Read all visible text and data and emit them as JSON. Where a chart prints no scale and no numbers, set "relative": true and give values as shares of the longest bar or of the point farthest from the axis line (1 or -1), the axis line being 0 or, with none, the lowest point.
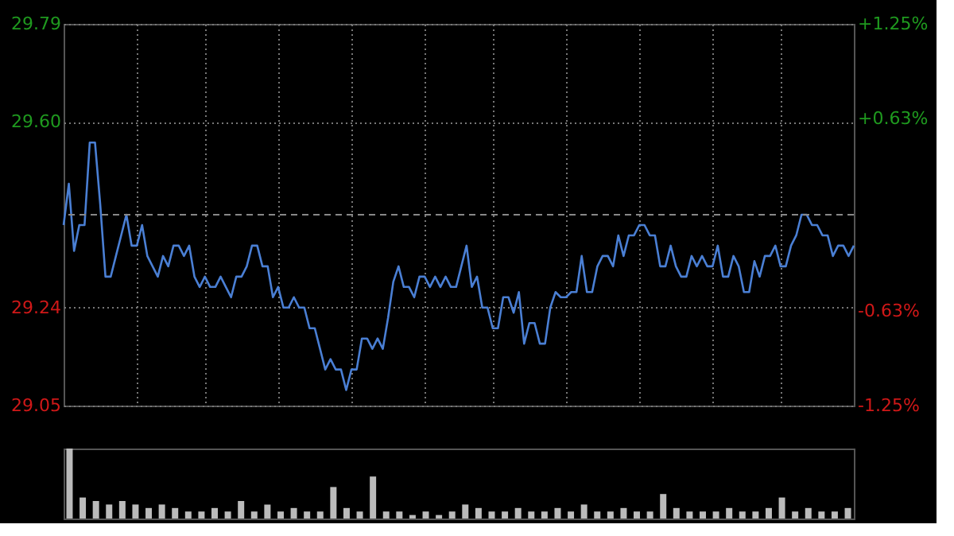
{
  "chart_data": [
    {
      "type": "line",
      "categories": [
        null,
        null,
        null,
        null,
        null,
        null,
        null,
        null,
        null,
        null,
        null,
        null,
        null,
        null,
        null,
        null,
        null,
        null,
        null,
        null,
        null,
        null,
        null,
        null,
        null,
        null,
        null,
        null,
        null,
        null,
        null,
        null,
        null,
        null,
        null,
        null,
        null,
        null,
        null,
        null,
        null,
        null,
        null,
        null,
        null,
        null,
        null,
        null,
        null,
        null,
        null,
        null,
        null,
        null,
        null,
        null,
        null,
        null,
        null,
        null,
        null,
        null,
        null,
        null,
        null,
        null,
        null,
        null,
        null,
        null,
        null,
        null,
        null,
        null,
        null,
        null,
        null,
        null,
        null,
        null,
        null,
        null,
        null,
        null,
        null,
        null,
        null,
        null,
        null,
        null,
        null,
        null,
        null,
        null,
        null,
        null,
        null,
        null,
        null,
        null,
        null,
        null,
        null,
        null,
        null,
        null,
        null,
        null,
        null,
        null,
        null,
        null,
        null,
        null,
        null,
        null,
        null,
        null,
        null,
        null,
        null,
        null,
        null,
        null,
        null,
        null,
        null,
        null,
        null,
        null,
        null,
        null,
        null,
        null,
        null,
        null,
        null,
        null,
        null,
        null,
        null,
        null,
        null,
        null,
        null,
        null,
        null,
        null,
        null,
        null,
        null,
        null
      ],
      "ylim": [
        29.05,
        29.79
      ],
      "yticks": [
        29.05,
        29.24,
        {
          "value": 29.6,
          "label": "29.60"
        },
        29.79
      ],
      "y2lim": [
        -1.25,
        1.25
      ],
      "y2ticks": [
        {
          "value": -1.25,
          "label": "-1.25%"
        },
        {
          "value": -0.63,
          "label": "-0.63%"
        },
        {
          "value": 0.63,
          "label": "+0.63%"
        },
        {
          "value": 1.25,
          "label": "+1.25%"
        }
      ],
      "tick_labels": "y",
      "grid": true,
      "ref_lines": [
        {
          "axis": "y",
          "value": 29.42,
          "color": "#888888",
          "line_style": "dashed"
        }
      ],
      "series": [
        {
          "color": "#4a7fd4",
          "values": [
            29.4,
            29.48,
            29.35,
            29.4,
            29.4,
            29.56,
            29.56,
            29.44,
            29.3,
            29.3,
            29.34,
            29.38,
            29.42,
            29.36,
            29.36,
            29.4,
            29.34,
            29.32,
            29.3,
            29.34,
            29.32,
            29.36,
            29.36,
            29.34,
            29.36,
            29.3,
            29.28,
            29.3,
            29.28,
            29.28,
            29.3,
            29.28,
            29.26,
            29.3,
            29.3,
            29.32,
            29.36,
            29.36,
            29.32,
            29.32,
            29.26,
            29.28,
            29.24,
            29.24,
            29.26,
            29.24,
            29.24,
            29.2,
            29.2,
            29.16,
            29.12,
            29.14,
            29.12,
            29.12,
            29.08,
            29.12,
            29.12,
            29.18,
            29.18,
            29.16,
            29.18,
            29.16,
            29.22,
            29.29,
            29.32,
            29.28,
            29.28,
            29.26,
            29.3,
            29.3,
            29.28,
            29.3,
            29.28,
            29.3,
            29.28,
            29.28,
            29.32,
            29.36,
            29.28,
            29.3,
            29.24,
            29.24,
            29.2,
            29.2,
            29.26,
            29.26,
            29.23,
            29.27,
            29.17,
            29.21,
            29.21,
            29.17,
            29.17,
            29.24,
            29.27,
            29.26,
            29.26,
            29.27,
            29.27,
            29.34,
            29.27,
            29.27,
            29.32,
            29.34,
            29.34,
            29.32,
            29.38,
            29.34,
            29.38,
            29.38,
            29.4,
            29.4,
            29.38,
            29.38,
            29.32,
            29.32,
            29.36,
            29.32,
            29.3,
            29.3,
            29.34,
            29.32,
            29.34,
            29.32,
            29.32,
            29.36,
            29.3,
            29.3,
            29.34,
            29.32,
            29.27,
            29.27,
            29.33,
            29.3,
            29.34,
            29.34,
            29.36,
            29.32,
            29.32,
            29.36,
            29.38,
            29.42,
            29.42,
            29.4,
            29.4,
            29.38,
            29.38,
            29.34,
            29.36,
            29.36,
            29.34,
            29.36
          ]
        }
      ]
    },
    {
      "type": "bar",
      "relative": true,
      "tick_labels": false,
      "categories": [
        null,
        null,
        null,
        null,
        null,
        null,
        null,
        null,
        null,
        null,
        null,
        null,
        null,
        null,
        null,
        null,
        null,
        null,
        null,
        null,
        null,
        null,
        null,
        null,
        null,
        null,
        null,
        null,
        null,
        null,
        null,
        null,
        null,
        null,
        null,
        null,
        null,
        null,
        null,
        null,
        null,
        null,
        null,
        null,
        null,
        null,
        null,
        null,
        null,
        null,
        null,
        null,
        null,
        null,
        null,
        null,
        null,
        null,
        null,
        null
      ],
      "series": [
        {
          "color": "#bbbbbb",
          "values": [
            1.0,
            0.3,
            0.25,
            0.2,
            0.25,
            0.2,
            0.15,
            0.2,
            0.15,
            0.1,
            0.1,
            0.15,
            0.1,
            0.25,
            0.1,
            0.2,
            0.1,
            0.15,
            0.1,
            0.1,
            0.45,
            0.15,
            0.1,
            0.6,
            0.1,
            0.1,
            0.05,
            0.1,
            0.05,
            0.1,
            0.2,
            0.15,
            0.1,
            0.1,
            0.15,
            0.1,
            0.1,
            0.15,
            0.1,
            0.2,
            0.1,
            0.1,
            0.15,
            0.1,
            0.1,
            0.35,
            0.15,
            0.1,
            0.1,
            0.1,
            0.15,
            0.1,
            0.1,
            0.15,
            0.3,
            0.1,
            0.15,
            0.1,
            0.1,
            0.15
          ]
        }
      ]
    }
  ]
}
